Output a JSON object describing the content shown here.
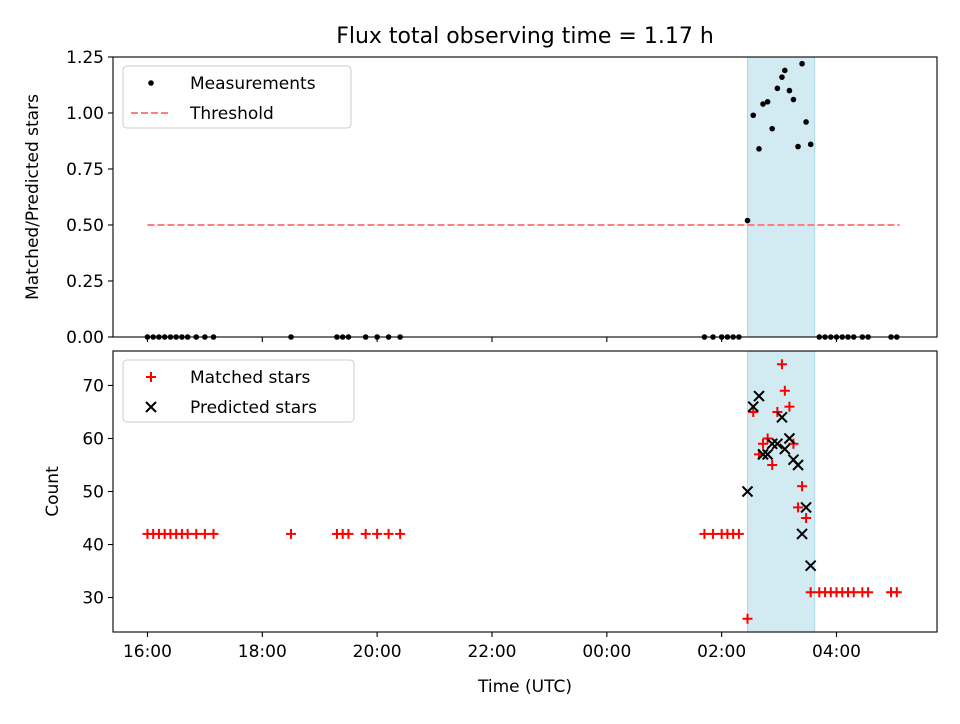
{
  "chart_data": [
    {
      "type": "scatter",
      "title": "Flux total observing time = 1.17 h",
      "xlabel": "",
      "ylabel": "Matched/Predicted stars",
      "ylim": [
        0,
        1.25
      ],
      "yticks": [
        "0.00",
        "0.25",
        "0.50",
        "0.75",
        "1.00",
        "1.25"
      ],
      "highlight_span": {
        "x_start": 26.45,
        "x_end": 27.62,
        "color": "#add8e6"
      },
      "legend_position": "top-left",
      "series": [
        {
          "name": "Measurements",
          "marker": "dot",
          "color": "#000000",
          "points": [
            [
              16.0,
              0
            ],
            [
              16.1,
              0
            ],
            [
              16.2,
              0
            ],
            [
              16.3,
              0
            ],
            [
              16.4,
              0
            ],
            [
              16.5,
              0
            ],
            [
              16.6,
              0
            ],
            [
              16.7,
              0
            ],
            [
              16.85,
              0
            ],
            [
              17.0,
              0
            ],
            [
              17.15,
              0
            ],
            [
              18.5,
              0
            ],
            [
              19.3,
              0
            ],
            [
              19.4,
              0
            ],
            [
              19.5,
              0
            ],
            [
              19.8,
              0
            ],
            [
              20.0,
              0
            ],
            [
              20.2,
              0
            ],
            [
              20.4,
              0
            ],
            [
              25.7,
              0
            ],
            [
              25.85,
              0
            ],
            [
              26.0,
              0
            ],
            [
              26.1,
              0
            ],
            [
              26.2,
              0
            ],
            [
              26.3,
              0
            ],
            [
              26.45,
              0.52
            ],
            [
              26.55,
              0.99
            ],
            [
              26.65,
              0.84
            ],
            [
              26.72,
              1.04
            ],
            [
              26.8,
              1.05
            ],
            [
              26.88,
              0.93
            ],
            [
              26.97,
              1.11
            ],
            [
              27.05,
              1.16
            ],
            [
              27.1,
              1.19
            ],
            [
              27.18,
              1.1
            ],
            [
              27.25,
              1.06
            ],
            [
              27.33,
              0.85
            ],
            [
              27.4,
              1.22
            ],
            [
              27.47,
              0.96
            ],
            [
              27.55,
              0.86
            ],
            [
              27.7,
              0
            ],
            [
              27.8,
              0
            ],
            [
              27.9,
              0
            ],
            [
              28.0,
              0
            ],
            [
              28.1,
              0
            ],
            [
              28.2,
              0
            ],
            [
              28.3,
              0
            ],
            [
              28.45,
              0
            ],
            [
              28.55,
              0
            ],
            [
              28.95,
              0
            ],
            [
              29.05,
              0
            ]
          ]
        },
        {
          "name": "Threshold",
          "marker": "dashed-line",
          "color": "#ff7f7f",
          "points": [
            [
              16.0,
              0.5
            ],
            [
              29.1,
              0.5
            ]
          ]
        }
      ]
    },
    {
      "type": "scatter",
      "xlabel": "Time (UTC)",
      "ylabel": "Count",
      "ylim": [
        23.5,
        76.5
      ],
      "yticks": [
        "30",
        "40",
        "50",
        "60",
        "70"
      ],
      "xlim": [
        15.4,
        29.75
      ],
      "xtick_values": [
        16,
        18,
        20,
        22,
        24,
        26,
        28
      ],
      "xticks": [
        "16:00",
        "18:00",
        "20:00",
        "22:00",
        "00:00",
        "02:00",
        "04:00"
      ],
      "highlight_span": {
        "x_start": 26.45,
        "x_end": 27.62,
        "color": "#add8e6"
      },
      "legend_position": "top-left",
      "series": [
        {
          "name": "Matched stars",
          "marker": "plus",
          "color": "#ff0000",
          "points": [
            [
              16.0,
              42
            ],
            [
              16.1,
              42
            ],
            [
              16.2,
              42
            ],
            [
              16.3,
              42
            ],
            [
              16.4,
              42
            ],
            [
              16.5,
              42
            ],
            [
              16.6,
              42
            ],
            [
              16.7,
              42
            ],
            [
              16.85,
              42
            ],
            [
              17.0,
              42
            ],
            [
              17.15,
              42
            ],
            [
              18.5,
              42
            ],
            [
              19.3,
              42
            ],
            [
              19.4,
              42
            ],
            [
              19.5,
              42
            ],
            [
              19.8,
              42
            ],
            [
              20.0,
              42
            ],
            [
              20.2,
              42
            ],
            [
              20.4,
              42
            ],
            [
              25.7,
              42
            ],
            [
              25.85,
              42
            ],
            [
              26.0,
              42
            ],
            [
              26.1,
              42
            ],
            [
              26.2,
              42
            ],
            [
              26.3,
              42
            ],
            [
              26.45,
              26
            ],
            [
              26.55,
              65
            ],
            [
              26.65,
              57
            ],
            [
              26.72,
              59
            ],
            [
              26.8,
              60
            ],
            [
              26.88,
              55
            ],
            [
              26.97,
              65
            ],
            [
              27.05,
              74
            ],
            [
              27.1,
              69
            ],
            [
              27.18,
              66
            ],
            [
              27.25,
              59
            ],
            [
              27.33,
              47
            ],
            [
              27.4,
              51
            ],
            [
              27.47,
              45
            ],
            [
              27.55,
              31
            ],
            [
              27.7,
              31
            ],
            [
              27.8,
              31
            ],
            [
              27.9,
              31
            ],
            [
              28.0,
              31
            ],
            [
              28.1,
              31
            ],
            [
              28.2,
              31
            ],
            [
              28.3,
              31
            ],
            [
              28.45,
              31
            ],
            [
              28.55,
              31
            ],
            [
              28.95,
              31
            ],
            [
              29.05,
              31
            ]
          ]
        },
        {
          "name": "Predicted stars",
          "marker": "x",
          "color": "#000000",
          "points": [
            [
              26.45,
              50
            ],
            [
              26.55,
              66
            ],
            [
              26.65,
              68
            ],
            [
              26.72,
              57
            ],
            [
              26.8,
              57
            ],
            [
              26.88,
              59
            ],
            [
              26.97,
              59
            ],
            [
              27.05,
              64
            ],
            [
              27.1,
              58
            ],
            [
              27.18,
              60
            ],
            [
              27.25,
              56
            ],
            [
              27.33,
              55
            ],
            [
              27.4,
              42
            ],
            [
              27.47,
              47
            ],
            [
              27.55,
              36
            ]
          ]
        }
      ]
    }
  ]
}
